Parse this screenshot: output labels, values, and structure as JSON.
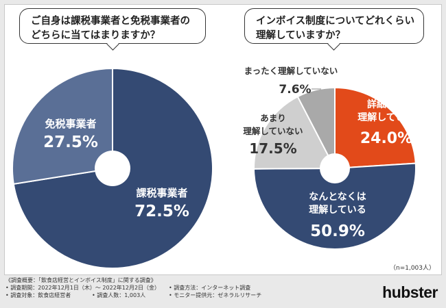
{
  "chart_data": [
    {
      "type": "pie",
      "title": "ご自身は課税事業者と免税事業者のどちらに当てはまりますか？",
      "title_lines": [
        "ご自身は課税事業者と免税事業者の",
        "どちらに当てはまりますか？"
      ],
      "labels": [
        "課税事業者",
        "免税事業者"
      ],
      "values": [
        72.5,
        27.5
      ],
      "value_labels": [
        "72.5%",
        "27.5%"
      ],
      "colors": [
        "#344a73",
        "#5a6f96"
      ]
    },
    {
      "type": "pie",
      "title": "インボイス制度についてどれくらい理解していますか？",
      "title_lines": [
        "インボイス制度についてどれくらい",
        "理解していますか？"
      ],
      "labels": [
        "詳細まで理解している",
        "なんとなくは理解している",
        "あまり理解していない",
        "まったく理解していない"
      ],
      "label_lines": [
        [
          "詳細まで",
          "理解している"
        ],
        [
          "なんとなくは",
          "理解している"
        ],
        [
          "あまり",
          "理解していない"
        ],
        [
          "まったく理解していない"
        ]
      ],
      "values": [
        24.0,
        50.9,
        17.5,
        7.6
      ],
      "value_labels": [
        "24.0%",
        "50.9%",
        "17.5%",
        "7.6%"
      ],
      "colors": [
        "#e24a1a",
        "#344a73",
        "#cfcfcf",
        "#a9a9a9"
      ],
      "note": "（n=1,003人）"
    }
  ],
  "footer": {
    "summary": "《調査概要：「飲食店経営とインボイス制度」に関する調査》",
    "period": "• 調査期間：2022年12月1日（木）～ 2022年12月2日（金）",
    "method": "• 調査方法：インターネット調査",
    "target": "• 調査対象：飲食店経営者",
    "count": "• 調査人数：1,003人",
    "provider": "• モニター提供元：ゼネラルリサーチ"
  },
  "brand": "hubster"
}
